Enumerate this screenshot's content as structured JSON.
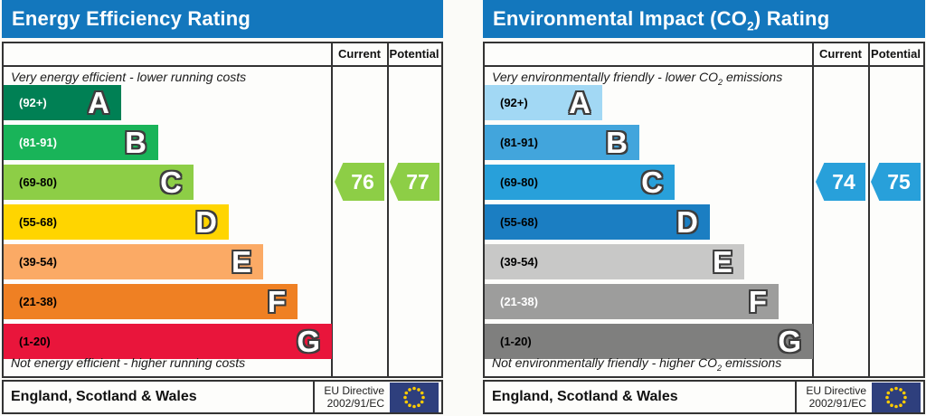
{
  "chart_data": [
    {
      "type": "bar",
      "title": {
        "pre": "Energy Efficiency Rating"
      },
      "title_bg": "#1377bd",
      "columns": {
        "current": "Current",
        "potential": "Potential"
      },
      "top_note": {
        "pre": "Very energy efficient - lower running costs"
      },
      "bottom_note": {
        "pre": "Not energy efficient - higher running costs"
      },
      "bands": [
        {
          "letter": "A",
          "range": "(92+)",
          "min": 92,
          "max": 100,
          "color": "#008054",
          "range_color": "#ffffff"
        },
        {
          "letter": "B",
          "range": "(81-91)",
          "min": 81,
          "max": 91,
          "color": "#19b459",
          "range_color": "#ffffff"
        },
        {
          "letter": "C",
          "range": "(69-80)",
          "min": 69,
          "max": 80,
          "color": "#8dce46",
          "range_color": "#000000"
        },
        {
          "letter": "D",
          "range": "(55-68)",
          "min": 55,
          "max": 68,
          "color": "#ffd500",
          "range_color": "#000000"
        },
        {
          "letter": "E",
          "range": "(39-54)",
          "min": 39,
          "max": 54,
          "color": "#fbaa65",
          "range_color": "#000000"
        },
        {
          "letter": "F",
          "range": "(21-38)",
          "min": 21,
          "max": 38,
          "color": "#ef8023",
          "range_color": "#000000"
        },
        {
          "letter": "G",
          "range": "(1-20)",
          "min": 1,
          "max": 20,
          "color": "#e9153b",
          "range_color": "#000000"
        }
      ],
      "current": {
        "value": 76,
        "color": "#8dce46"
      },
      "potential": {
        "value": 77,
        "color": "#8dce46"
      },
      "footer": {
        "region": "England, Scotland & Wales",
        "directive_line1": "EU Directive",
        "directive_line2": "2002/91/EC"
      }
    },
    {
      "type": "bar",
      "title": {
        "pre": "Environmental Impact (CO",
        "sub": "2",
        "post": ") Rating"
      },
      "title_bg": "#1377bd",
      "columns": {
        "current": "Current",
        "potential": "Potential"
      },
      "top_note": {
        "pre": "Very environmentally friendly - lower CO",
        "sub": "2",
        "post": " emissions"
      },
      "bottom_note": {
        "pre": "Not environmentally friendly - higher CO",
        "sub": "2",
        "post": " emissions"
      },
      "bands": [
        {
          "letter": "A",
          "range": "(92+)",
          "min": 92,
          "max": 100,
          "color": "#a2d8f4",
          "range_color": "#000000"
        },
        {
          "letter": "B",
          "range": "(81-91)",
          "min": 81,
          "max": 91,
          "color": "#42a5dc",
          "range_color": "#000000"
        },
        {
          "letter": "C",
          "range": "(69-80)",
          "min": 69,
          "max": 80,
          "color": "#28a0da",
          "range_color": "#000000"
        },
        {
          "letter": "D",
          "range": "(55-68)",
          "min": 55,
          "max": 68,
          "color": "#1b7ec2",
          "range_color": "#000000"
        },
        {
          "letter": "E",
          "range": "(39-54)",
          "min": 39,
          "max": 54,
          "color": "#c8c8c7",
          "range_color": "#000000"
        },
        {
          "letter": "F",
          "range": "(21-38)",
          "min": 21,
          "max": 38,
          "color": "#9d9d9c",
          "range_color": "#ffffff"
        },
        {
          "letter": "G",
          "range": "(1-20)",
          "min": 1,
          "max": 20,
          "color": "#7f7f7e",
          "range_color": "#000000"
        }
      ],
      "current": {
        "value": 74,
        "color": "#28a0da"
      },
      "potential": {
        "value": 75,
        "color": "#28a0da"
      },
      "footer": {
        "region": "England, Scotland & Wales",
        "directive_line1": "EU Directive",
        "directive_line2": "2002/91/EC"
      }
    }
  ],
  "eu_flag": {
    "bg": "#2e3f7d",
    "star_color": "#ffcc00"
  }
}
